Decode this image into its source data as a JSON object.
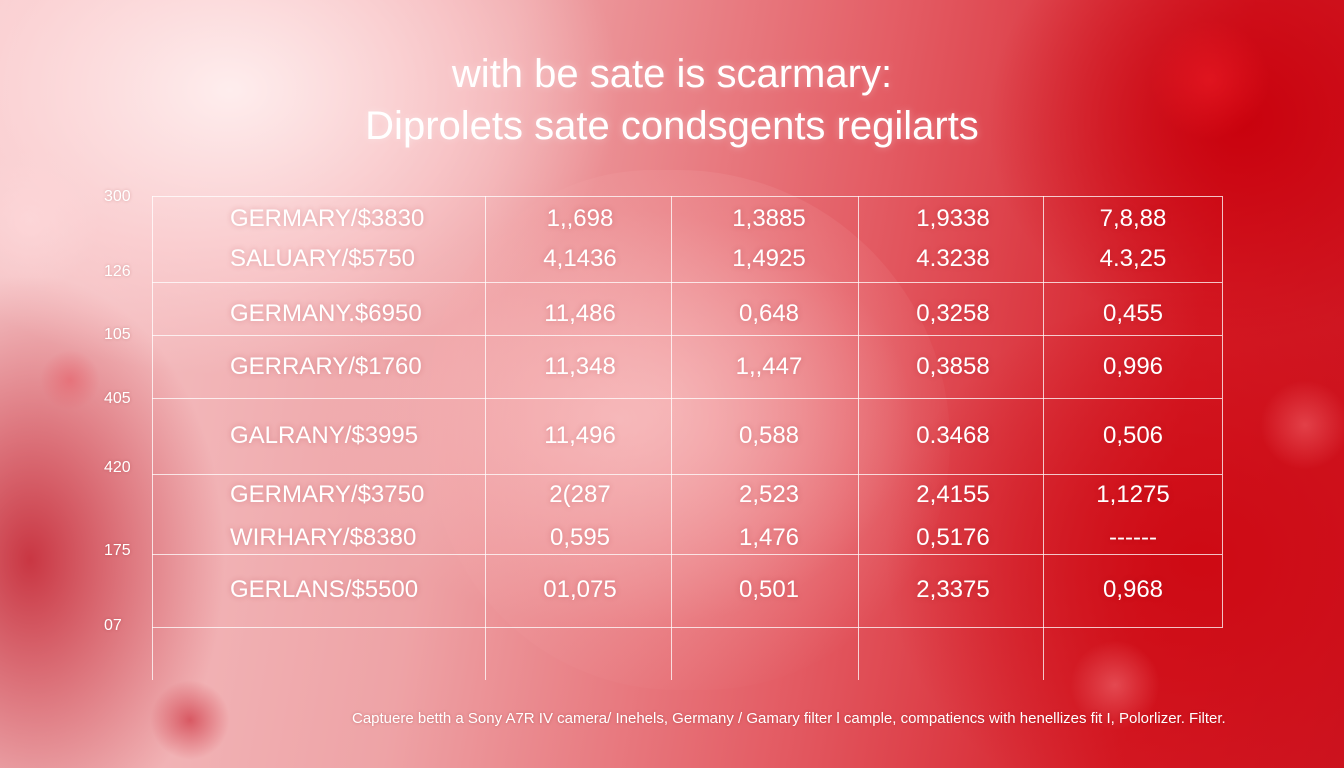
{
  "title_line1": "with be sate is scarmary:",
  "title_line2": "Diprolets sate condsgents regilarts",
  "axis_labels": [
    "300",
    "126",
    "105",
    "405",
    "420",
    "175",
    "07"
  ],
  "rows": [
    [
      "GERMARY/$3830",
      "1,,698",
      "1,3885",
      "1,9338",
      "7,8,88"
    ],
    [
      "SALUARY/$5750",
      "4,1436",
      "1,4925",
      "4.3238",
      "4.3,25"
    ],
    [
      "GERMANY.$6950",
      "11,486",
      "0,648",
      "0,3258",
      "0,455"
    ],
    [
      "GERRARY/$1760",
      "11,348",
      "1,,447",
      "0,3858",
      "0,996"
    ],
    [
      "GALRANY/$3995",
      "11,496",
      "0,588",
      "0.3468",
      "0,506"
    ],
    [
      "GERMARY/$3750",
      "2(287",
      "2,523",
      "2,4155",
      "1,1275"
    ],
    [
      "WIRHARY/$8380",
      "0,595",
      "1,476",
      "0,5176",
      "------"
    ],
    [
      "GERLANS/$5500",
      "01,075",
      "0,501",
      "2,3375",
      "0,968"
    ]
  ],
  "caption": "Captuere betth a Sony A7R IV camera/ Inehels, Germany / Gamary filter l cample, compatiencs with henellizes fit I, Polorlizer. Filter."
}
